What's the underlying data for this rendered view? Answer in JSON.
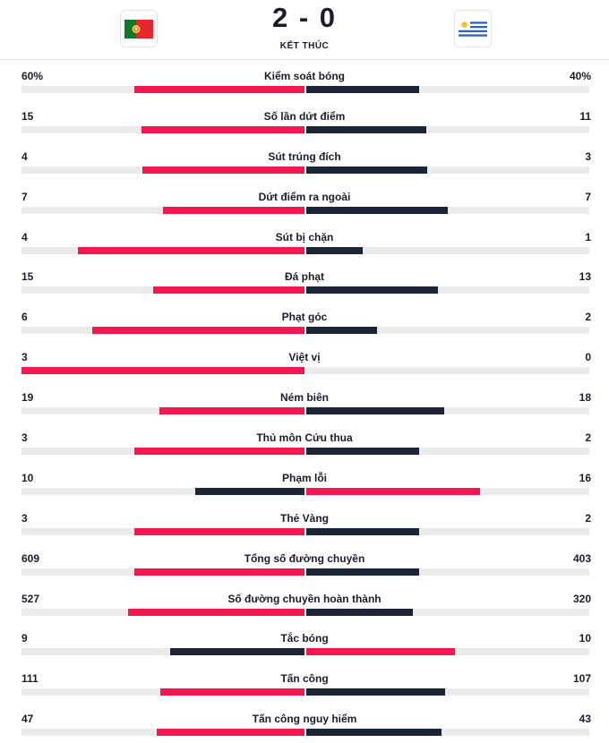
{
  "match": {
    "score": "2 - 0",
    "status": "KẾT THÚC",
    "home_flag": "portugal-flag",
    "away_flag": "uruguay-flag"
  },
  "colors": {
    "winner": "#f5174f",
    "loser": "#1b2535",
    "track": "#ebebeb"
  },
  "stats": [
    {
      "label": "Kiểm soát bóng",
      "home": "60%",
      "away": "40%",
      "home_share": 0.6,
      "away_share": 0.4
    },
    {
      "label": "Số lần dứt điểm",
      "home": "15",
      "away": "11"
    },
    {
      "label": "Sút trúng đích",
      "home": "4",
      "away": "3"
    },
    {
      "label": "Dứt điểm ra ngoài",
      "home": "7",
      "away": "7"
    },
    {
      "label": "Sút bị chặn",
      "home": "4",
      "away": "1"
    },
    {
      "label": "Đá phạt",
      "home": "15",
      "away": "13"
    },
    {
      "label": "Phạt góc",
      "home": "6",
      "away": "2"
    },
    {
      "label": "Việt vị",
      "home": "3",
      "away": "0"
    },
    {
      "label": "Ném biên",
      "home": "19",
      "away": "18"
    },
    {
      "label": "Thủ môn Cứu thua",
      "home": "3",
      "away": "2"
    },
    {
      "label": "Phạm lỗi",
      "home": "10",
      "away": "16"
    },
    {
      "label": "Thẻ Vàng",
      "home": "3",
      "away": "2"
    },
    {
      "label": "Tổng số đường chuyền",
      "home": "609",
      "away": "403"
    },
    {
      "label": "Số đường chuyền hoàn thành",
      "home": "527",
      "away": "320"
    },
    {
      "label": "Tắc bóng",
      "home": "9",
      "away": "10"
    },
    {
      "label": "Tấn công",
      "home": "111",
      "away": "107"
    },
    {
      "label": "Tấn công nguy hiểm",
      "home": "47",
      "away": "43"
    }
  ]
}
